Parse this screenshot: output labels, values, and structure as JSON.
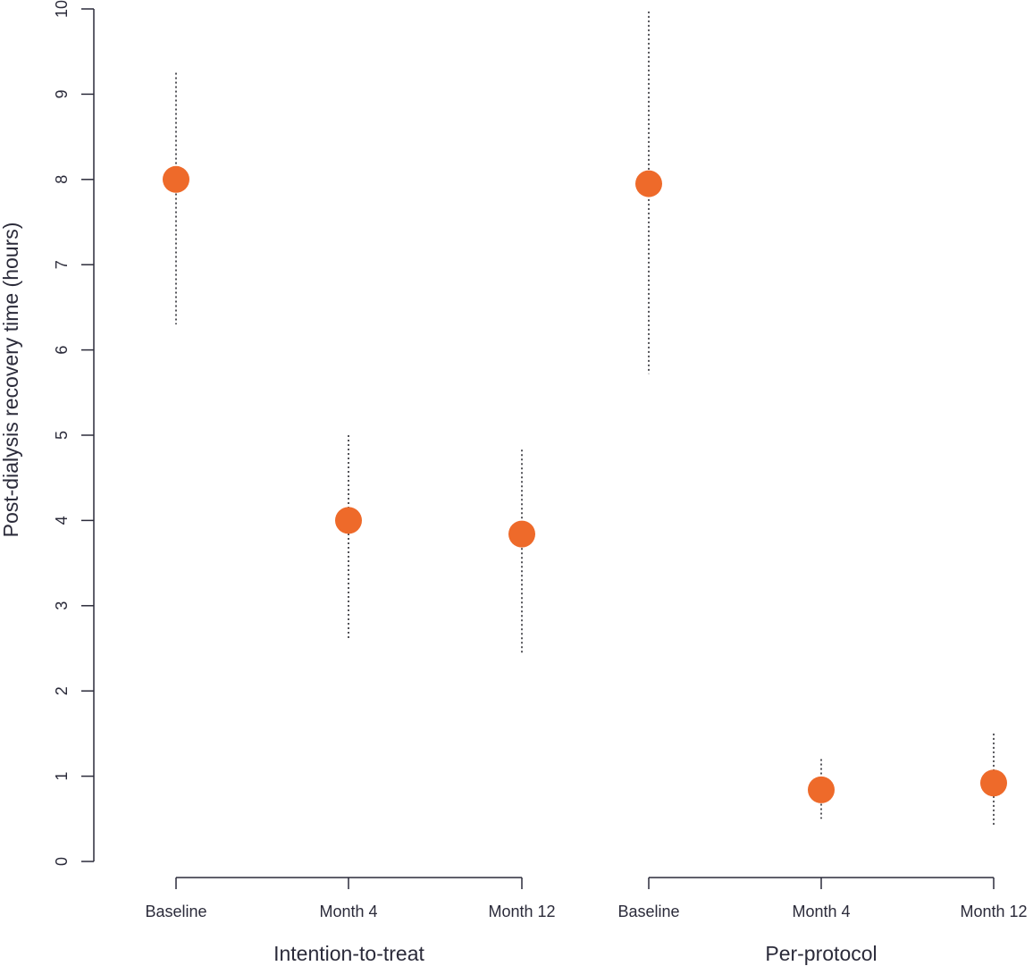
{
  "chart_data": {
    "type": "scatter",
    "title": "",
    "ylabel": "Post-dialysis recovery time (hours)",
    "ylim": [
      0,
      10
    ],
    "yticks": [
      0,
      1,
      2,
      3,
      4,
      5,
      6,
      7,
      8,
      9,
      10
    ],
    "grid": false,
    "marker_color": "#EE6A2A",
    "axis_color": "#2b2b3a",
    "groups": [
      {
        "label": "Intention-to-treat",
        "points": [
          {
            "category": "Baseline",
            "value": 8.0,
            "ci_low": 6.3,
            "ci_high": 9.25
          },
          {
            "category": "Month 4",
            "value": 4.0,
            "ci_low": 2.6,
            "ci_high": 5.0
          },
          {
            "category": "Month 12",
            "value": 3.84,
            "ci_low": 2.42,
            "ci_high": 4.83
          }
        ]
      },
      {
        "label": "Per-protocol",
        "points": [
          {
            "category": "Baseline",
            "value": 7.95,
            "ci_low": 5.72,
            "ci_high": 9.97
          },
          {
            "category": "Month 4",
            "value": 0.84,
            "ci_low": 0.5,
            "ci_high": 1.2
          },
          {
            "category": "Month 12",
            "value": 0.92,
            "ci_low": 0.42,
            "ci_high": 1.5
          }
        ]
      }
    ]
  }
}
